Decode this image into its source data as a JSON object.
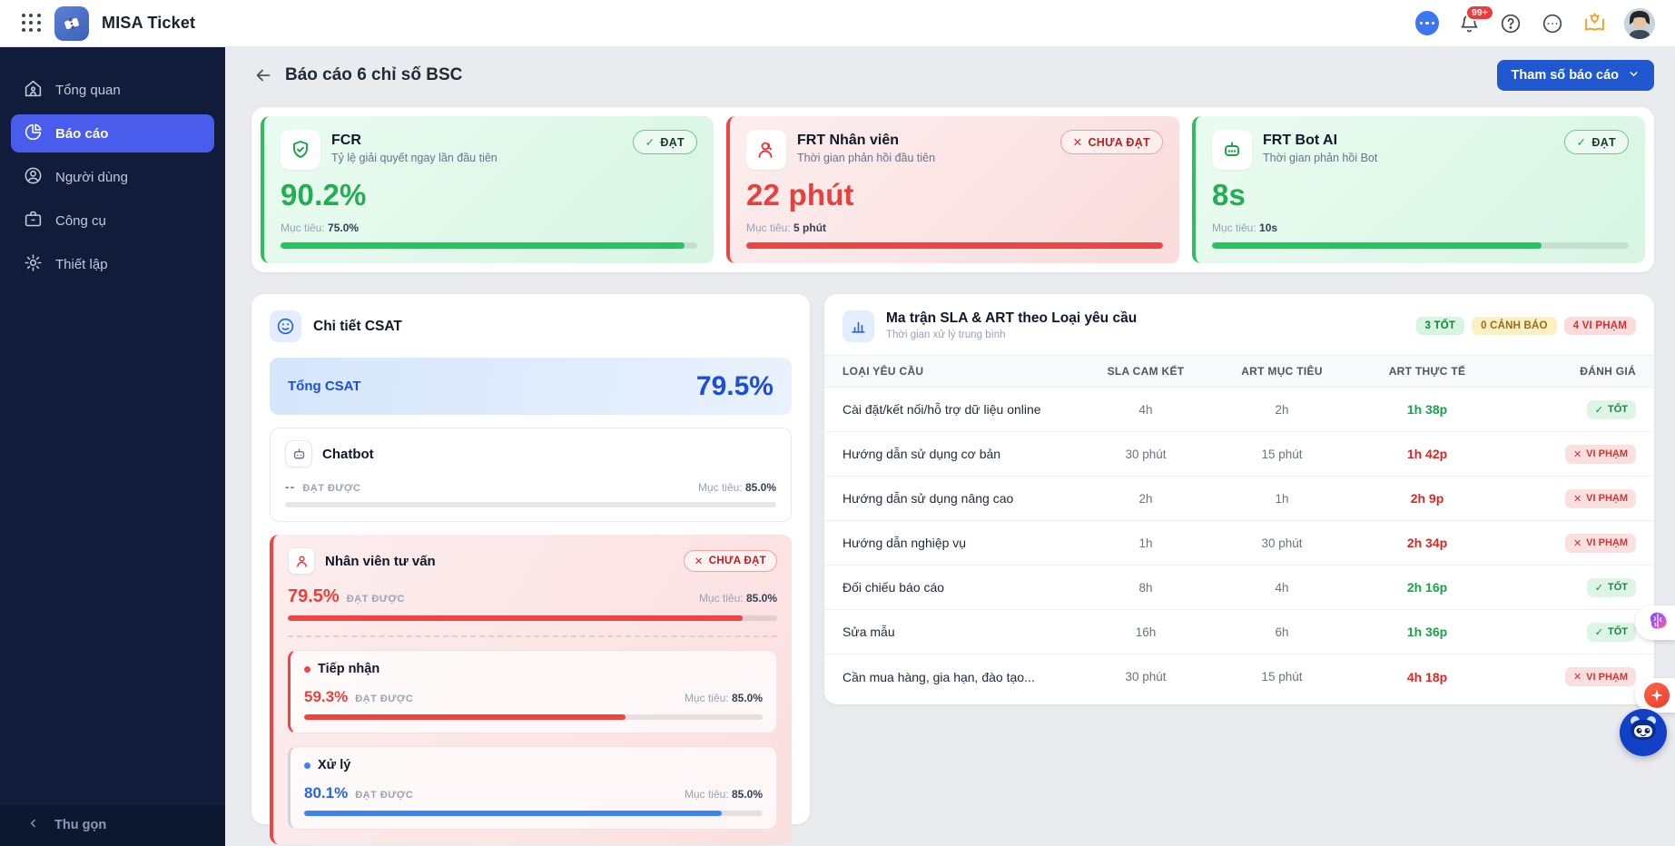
{
  "app": {
    "title": "MISA Ticket",
    "notification_badge": "99+"
  },
  "sidebar": {
    "items": [
      {
        "label": "Tổng quan"
      },
      {
        "label": "Báo cáo"
      },
      {
        "label": "Người dùng"
      },
      {
        "label": "Công cụ"
      },
      {
        "label": "Thiết lập"
      }
    ],
    "collapse_label": "Thu gọn"
  },
  "page": {
    "title": "Báo cáo 6 chỉ số BSC",
    "params_button": "Tham số báo cáo"
  },
  "kpi_cards": [
    {
      "name": "FCR",
      "subtitle": "Tỷ lệ giải quyết ngay lần đầu tiên",
      "value": "90.2%",
      "target_label": "Mục tiêu:",
      "target": "75.0%",
      "status_icon": "✓",
      "status": "ĐẠT",
      "progress": 97
    },
    {
      "name": "FRT Nhân viên",
      "subtitle": "Thời gian phản hồi đầu tiên",
      "value": "22 phút",
      "target_label": "Mục tiêu:",
      "target": "5 phút",
      "status_icon": "✕",
      "status": "CHƯA ĐẠT",
      "progress": 100
    },
    {
      "name": "FRT Bot AI",
      "subtitle": "Thời gian phản hồi Bot",
      "value": "8s",
      "target_label": "Mục tiêu:",
      "target": "10s",
      "status_icon": "✓",
      "status": "ĐẠT",
      "progress": 79
    }
  ],
  "csat": {
    "title": "Chi tiết CSAT",
    "total_label": "Tổng CSAT",
    "total_value": "79.5%",
    "chatbot": {
      "name": "Chatbot",
      "value": "--",
      "achieved_label": "ĐẠT ĐƯỢC",
      "target_label": "Mục tiêu:",
      "target": "85.0%",
      "progress": 0
    },
    "agent": {
      "name": "Nhân viên tư vấn",
      "status_icon": "✕",
      "status": "CHƯA ĐẠT",
      "value": "79.5%",
      "achieved_label": "ĐẠT ĐƯỢC",
      "target_label": "Mục tiêu:",
      "target": "85.0%",
      "progress": 93,
      "sub": [
        {
          "name": "Tiếp nhận",
          "value": "59.3%",
          "achieved_label": "ĐẠT ĐƯỢC",
          "target_label": "Mục tiêu:",
          "target": "85.0%",
          "progress": 70
        },
        {
          "name": "Xử lý",
          "value": "80.1%",
          "achieved_label": "ĐẠT ĐƯỢC",
          "target_label": "Mục tiêu:",
          "target": "85.0%",
          "progress": 91
        }
      ]
    }
  },
  "sla_table": {
    "title": "Ma trận SLA & ART theo Loại yêu cầu",
    "subtitle": "Thời gian xử lý trung bình",
    "badges": [
      {
        "label": "3 TỐT"
      },
      {
        "label": "0 CẢNH BÁO"
      },
      {
        "label": "4 VI PHẠM"
      }
    ],
    "columns": [
      "LOẠI YÊU CẦU",
      "SLA CAM KẾT",
      "ART MỤC TIÊU",
      "ART THỰC TẾ",
      "ĐÁNH GIÁ"
    ],
    "rows": [
      {
        "type": "Cài đặt/kết nối/hỗ trợ dữ liệu online",
        "sla": "4h",
        "art_target": "2h",
        "art_actual": "1h 38p",
        "status_icon": "✓",
        "status": "TỐT"
      },
      {
        "type": "Hướng dẫn sử dụng cơ bản",
        "sla": "30 phút",
        "art_target": "15 phút",
        "art_actual": "1h 42p",
        "status_icon": "✕",
        "status": "VI PHẠM"
      },
      {
        "type": "Hướng dẫn sử dụng nâng cao",
        "sla": "2h",
        "art_target": "1h",
        "art_actual": "2h 9p",
        "status_icon": "✕",
        "status": "VI PHẠM"
      },
      {
        "type": "Hướng dẫn nghiệp vụ",
        "sla": "1h",
        "art_target": "30 phút",
        "art_actual": "2h 34p",
        "status_icon": "✕",
        "status": "VI PHẠM"
      },
      {
        "type": "Đối chiếu báo cáo",
        "sla": "8h",
        "art_target": "4h",
        "art_actual": "2h 16p",
        "status_icon": "✓",
        "status": "TỐT"
      },
      {
        "type": "Sửa mẫu",
        "sla": "16h",
        "art_target": "6h",
        "art_actual": "1h 36p",
        "status_icon": "✓",
        "status": "TỐT"
      },
      {
        "type": "Cần mua hàng, gia hạn, đào tạo...",
        "sla": "30 phút",
        "art_target": "15 phút",
        "art_actual": "4h 18p",
        "status_icon": "✕",
        "status": "VI PHẠM"
      }
    ]
  },
  "colors": {
    "accent_blue": "#2158d0",
    "active_nav": "#4a5cec",
    "green": "#22c55e",
    "red": "#ef4444",
    "csat_blue": "#1d4ed8"
  }
}
